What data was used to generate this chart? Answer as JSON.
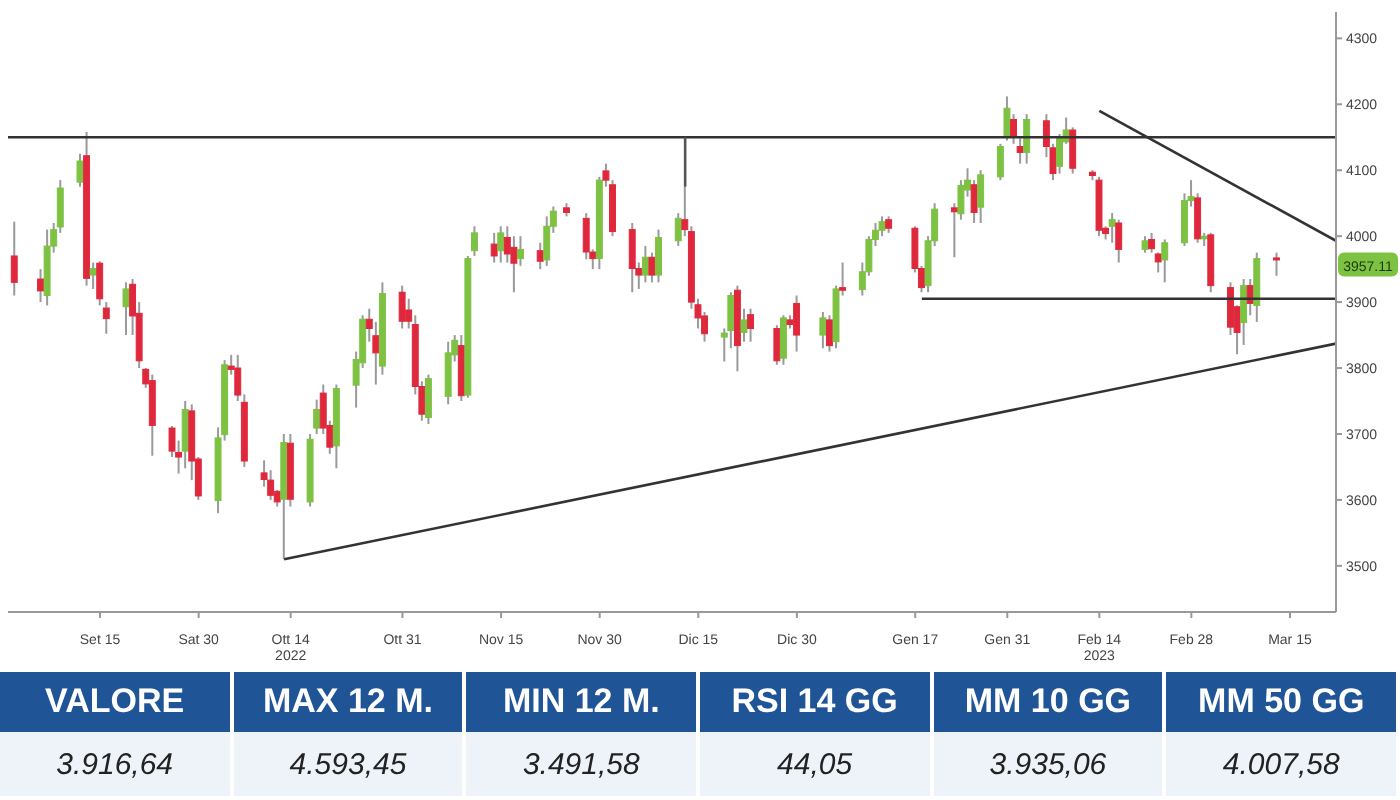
{
  "chart_data": [
    {
      "type": "candlestick",
      "x": [
        "2022-09-02",
        "2022-09-06",
        "2022-09-07",
        "2022-09-08",
        "2022-09-09",
        "2022-09-12",
        "2022-09-13",
        "2022-09-14",
        "2022-09-15",
        "2022-09-16",
        "2022-09-19",
        "2022-09-20",
        "2022-09-21",
        "2022-09-22",
        "2022-09-23",
        "2022-09-26",
        "2022-09-27",
        "2022-09-28",
        "2022-09-29",
        "2022-09-30",
        "2022-10-03",
        "2022-10-04",
        "2022-10-05",
        "2022-10-06",
        "2022-10-07",
        "2022-10-10",
        "2022-10-11",
        "2022-10-12",
        "2022-10-13",
        "2022-10-14",
        "2022-10-17",
        "2022-10-18",
        "2022-10-19",
        "2022-10-20",
        "2022-10-21",
        "2022-10-24",
        "2022-10-25",
        "2022-10-26",
        "2022-10-27",
        "2022-10-28",
        "2022-10-31",
        "2022-11-01",
        "2022-11-02",
        "2022-11-03",
        "2022-11-04",
        "2022-11-07",
        "2022-11-08",
        "2022-11-09",
        "2022-11-10",
        "2022-11-11",
        "2022-11-14",
        "2022-11-15",
        "2022-11-16",
        "2022-11-17",
        "2022-11-18",
        "2022-11-21",
        "2022-11-22",
        "2022-11-23",
        "2022-11-25",
        "2022-11-28",
        "2022-11-29",
        "2022-11-30",
        "2022-12-01",
        "2022-12-02",
        "2022-12-05",
        "2022-12-06",
        "2022-12-07",
        "2022-12-08",
        "2022-12-09",
        "2022-12-12",
        "2022-12-13",
        "2022-12-14",
        "2022-12-15",
        "2022-12-16",
        "2022-12-19",
        "2022-12-20",
        "2022-12-21",
        "2022-12-22",
        "2022-12-23",
        "2022-12-27",
        "2022-12-28",
        "2022-12-29",
        "2022-12-30",
        "2023-01-03",
        "2023-01-04",
        "2023-01-05",
        "2023-01-06",
        "2023-01-09",
        "2023-01-10",
        "2023-01-11",
        "2023-01-12",
        "2023-01-13",
        "2023-01-17",
        "2023-01-18",
        "2023-01-19",
        "2023-01-20",
        "2023-01-23",
        "2023-01-24",
        "2023-01-25",
        "2023-01-26",
        "2023-01-27",
        "2023-01-30",
        "2023-01-31",
        "2023-02-01",
        "2023-02-02",
        "2023-02-03",
        "2023-02-06",
        "2023-02-07",
        "2023-02-08",
        "2023-02-09",
        "2023-02-10",
        "2023-02-13",
        "2023-02-14",
        "2023-02-15",
        "2023-02-16",
        "2023-02-17",
        "2023-02-21",
        "2023-02-22",
        "2023-02-23",
        "2023-02-24",
        "2023-02-27",
        "2023-02-28",
        "2023-03-01",
        "2023-03-02",
        "2023-03-03",
        "2023-03-06",
        "2023-03-07",
        "2023-03-08",
        "2023-03-09",
        "2023-03-10",
        "2023-03-13"
      ],
      "ohlc": [
        [
          3970,
          4022,
          3910,
          3930
        ],
        [
          3935,
          3950,
          3900,
          3917
        ],
        [
          3910,
          4010,
          3895,
          3985
        ],
        [
          3985,
          4020,
          3975,
          4010
        ],
        [
          4014,
          4085,
          4005,
          4073
        ],
        [
          4082,
          4125,
          4075,
          4114
        ],
        [
          4122,
          4158,
          3925,
          3936
        ],
        [
          3941,
          3960,
          3920,
          3951
        ],
        [
          3959,
          3962,
          3895,
          3905
        ],
        [
          3891,
          3900,
          3852,
          3875
        ],
        [
          3893,
          3930,
          3850,
          3920
        ],
        [
          3927,
          3935,
          3850,
          3879
        ],
        [
          3883,
          3900,
          3800,
          3811
        ],
        [
          3798,
          3800,
          3770,
          3776
        ],
        [
          3781,
          3790,
          3667,
          3713
        ],
        [
          3709,
          3712,
          3665,
          3674
        ],
        [
          3672,
          3690,
          3640,
          3665
        ],
        [
          3674,
          3750,
          3648,
          3737
        ],
        [
          3735,
          3745,
          3630,
          3659
        ],
        [
          3662,
          3665,
          3600,
          3606
        ],
        [
          3599,
          3710,
          3580,
          3694
        ],
        [
          3699,
          3812,
          3690,
          3805
        ],
        [
          3803,
          3820,
          3790,
          3798
        ],
        [
          3800,
          3820,
          3750,
          3759
        ],
        [
          3748,
          3760,
          3650,
          3659
        ],
        [
          3641,
          3660,
          3620,
          3631
        ],
        [
          3630,
          3645,
          3600,
          3607
        ],
        [
          3613,
          3615,
          3590,
          3597
        ],
        [
          3601,
          3700,
          3510,
          3687
        ],
        [
          3686,
          3700,
          3590,
          3601
        ],
        [
          3597,
          3700,
          3590,
          3692
        ],
        [
          3709,
          3752,
          3700,
          3737
        ],
        [
          3762,
          3775,
          3700,
          3709
        ],
        [
          3713,
          3720,
          3670,
          3680
        ],
        [
          3682,
          3775,
          3648,
          3769
        ],
        [
          3774,
          3825,
          3740,
          3813
        ],
        [
          3808,
          3880,
          3800,
          3874
        ],
        [
          3874,
          3890,
          3840,
          3860
        ],
        [
          3849,
          3870,
          3775,
          3823
        ],
        [
          3803,
          3930,
          3790,
          3913
        ],
        [
          3915,
          3925,
          3860,
          3871
        ],
        [
          3888,
          3905,
          3860,
          3871
        ],
        [
          3866,
          3880,
          3760,
          3772
        ],
        [
          3772,
          3780,
          3720,
          3730
        ],
        [
          3725,
          3790,
          3715,
          3784
        ],
        [
          3757,
          3840,
          3745,
          3823
        ],
        [
          3820,
          3850,
          3810,
          3842
        ],
        [
          3834,
          3850,
          3750,
          3758
        ],
        [
          3759,
          3970,
          3755,
          3966
        ],
        [
          3978,
          4015,
          3970,
          4005
        ],
        [
          3988,
          4005,
          3960,
          3970
        ],
        [
          3978,
          4015,
          3960,
          4005
        ],
        [
          3998,
          4015,
          3960,
          3973
        ],
        [
          3983,
          4000,
          3915,
          3959
        ],
        [
          3966,
          4000,
          3955,
          3980
        ],
        [
          3978,
          3990,
          3950,
          3962
        ],
        [
          3964,
          4030,
          3955,
          4015
        ],
        [
          4015,
          4045,
          4005,
          4038
        ],
        [
          4043,
          4050,
          4030,
          4036
        ],
        [
          4027,
          4035,
          3965,
          3976
        ],
        [
          3976,
          3980,
          3950,
          3966
        ],
        [
          3966,
          4090,
          3950,
          4085
        ],
        [
          4099,
          4110,
          4075,
          4085
        ],
        [
          4078,
          4085,
          4000,
          4007
        ],
        [
          4010,
          4020,
          3915,
          3951
        ],
        [
          3951,
          3960,
          3920,
          3941
        ],
        [
          3941,
          3985,
          3930,
          3968
        ],
        [
          3968,
          3975,
          3930,
          3941
        ],
        [
          3941,
          4010,
          3930,
          3998
        ],
        [
          3993,
          4035,
          3985,
          4027
        ],
        [
          4025,
          4075,
          4000,
          4010
        ],
        [
          4007,
          4015,
          3890,
          3900
        ],
        [
          3896,
          3905,
          3860,
          3876
        ],
        [
          3879,
          3885,
          3840,
          3852
        ],
        [
          3847,
          3860,
          3810,
          3853
        ],
        [
          3857,
          3915,
          3830,
          3910
        ],
        [
          3918,
          3925,
          3795,
          3834
        ],
        [
          3854,
          3890,
          3840,
          3873
        ],
        [
          3881,
          3890,
          3840,
          3860
        ],
        [
          3860,
          3865,
          3805,
          3811
        ],
        [
          3815,
          3880,
          3805,
          3876
        ],
        [
          3873,
          3880,
          3860,
          3866
        ],
        [
          3898,
          3910,
          3825,
          3850
        ],
        [
          3850,
          3885,
          3830,
          3876
        ],
        [
          3873,
          3880,
          3825,
          3834
        ],
        [
          3840,
          3925,
          3830,
          3920
        ],
        [
          3922,
          3960,
          3910,
          3918
        ],
        [
          3919,
          3960,
          3910,
          3946
        ],
        [
          3946,
          4000,
          3940,
          3995
        ],
        [
          3995,
          4020,
          3985,
          4009
        ],
        [
          4009,
          4030,
          4000,
          4022
        ],
        [
          4025,
          4030,
          4005,
          4012
        ],
        [
          4012,
          4015,
          3945,
          3951
        ],
        [
          3951,
          3955,
          3915,
          3922
        ],
        [
          3925,
          4000,
          3915,
          3993
        ],
        [
          3993,
          4050,
          3985,
          4041
        ],
        [
          4043,
          4050,
          3968,
          4037
        ],
        [
          4034,
          4085,
          4025,
          4077
        ],
        [
          4070,
          4103,
          4060,
          4085
        ],
        [
          4078,
          4085,
          4020,
          4036
        ],
        [
          4044,
          4100,
          4020,
          4093
        ],
        [
          4090,
          4140,
          4085,
          4136
        ],
        [
          4151,
          4212,
          4145,
          4194
        ],
        [
          4177,
          4185,
          4140,
          4151
        ],
        [
          4136,
          4150,
          4110,
          4127
        ],
        [
          4127,
          4185,
          4110,
          4177
        ],
        [
          4175,
          4185,
          4120,
          4136
        ],
        [
          4134,
          4140,
          4085,
          4095
        ],
        [
          4106,
          4155,
          4095,
          4148
        ],
        [
          4143,
          4180,
          4140,
          4161
        ],
        [
          4161,
          4165,
          4095,
          4103
        ],
        [
          4097,
          4100,
          4085,
          4092
        ],
        [
          4085,
          4090,
          4000,
          4009
        ],
        [
          4012,
          4015,
          3995,
          4004
        ],
        [
          4015,
          4035,
          3990,
          4025
        ],
        [
          4020,
          4025,
          3960,
          3980
        ],
        [
          3980,
          4000,
          3975,
          3993
        ],
        [
          3995,
          4005,
          3975,
          3981
        ],
        [
          3973,
          3975,
          3945,
          3961
        ],
        [
          3964,
          3995,
          3930,
          3990
        ],
        [
          3990,
          4065,
          3985,
          4054
        ],
        [
          4054,
          4085,
          4045,
          4060
        ],
        [
          4058,
          4065,
          3990,
          3996
        ],
        [
          3996,
          4005,
          3985,
          4000
        ],
        [
          4002,
          4005,
          3915,
          3925
        ],
        [
          3922,
          3930,
          3850,
          3862
        ],
        [
          3893,
          3895,
          3821,
          3854
        ],
        [
          3869,
          3935,
          3835,
          3925
        ],
        [
          3925,
          3935,
          3880,
          3898
        ],
        [
          3895,
          3975,
          3870,
          3966
        ],
        [
          3967,
          3975,
          3940,
          3964
        ]
      ],
      "colors": [
        "#e0283c",
        "#e0283c",
        "#7dc242",
        "#7dc242",
        "#7dc242",
        "#7dc242",
        "#e0283c",
        "#7dc242",
        "#e0283c",
        "#e0283c",
        "#7dc242",
        "#e0283c",
        "#e0283c",
        "#e0283c",
        "#e0283c",
        "#e0283c",
        "#e0283c",
        "#7dc242",
        "#e0283c",
        "#e0283c",
        "#7dc242",
        "#7dc242",
        "#e0283c",
        "#e0283c",
        "#e0283c",
        "#e0283c",
        "#e0283c",
        "#e0283c",
        "#7dc242",
        "#e0283c",
        "#7dc242",
        "#7dc242",
        "#e0283c",
        "#e0283c",
        "#7dc242",
        "#7dc242",
        "#7dc242",
        "#e0283c",
        "#e0283c",
        "#7dc242",
        "#e0283c",
        "#e0283c",
        "#e0283c",
        "#e0283c",
        "#7dc242",
        "#7dc242",
        "#7dc242",
        "#e0283c",
        "#7dc242",
        "#7dc242",
        "#e0283c",
        "#7dc242",
        "#e0283c",
        "#e0283c",
        "#7dc242",
        "#e0283c",
        "#7dc242",
        "#7dc242",
        "#e0283c",
        "#e0283c",
        "#e0283c",
        "#7dc242",
        "#e0283c",
        "#e0283c",
        "#e0283c",
        "#e0283c",
        "#7dc242",
        "#e0283c",
        "#7dc242",
        "#7dc242",
        "#e0283c",
        "#e0283c",
        "#e0283c",
        "#e0283c",
        "#7dc242",
        "#7dc242",
        "#e0283c",
        "#7dc242",
        "#e0283c",
        "#e0283c",
        "#7dc242",
        "#e0283c",
        "#e0283c",
        "#7dc242",
        "#e0283c",
        "#7dc242",
        "#e0283c",
        "#7dc242",
        "#7dc242",
        "#7dc242",
        "#7dc242",
        "#e0283c",
        "#e0283c",
        "#e0283c",
        "#7dc242",
        "#7dc242",
        "#e0283c",
        "#7dc242",
        "#7dc242",
        "#e0283c",
        "#7dc242",
        "#7dc242",
        "#7dc242",
        "#e0283c",
        "#e0283c",
        "#7dc242",
        "#e0283c",
        "#e0283c",
        "#7dc242",
        "#7dc242",
        "#e0283c",
        "#e0283c",
        "#e0283c",
        "#e0283c",
        "#7dc242",
        "#e0283c",
        "#7dc242",
        "#e0283c",
        "#e0283c",
        "#7dc242",
        "#7dc242",
        "#7dc242",
        "#e0283c",
        "#7dc242",
        "#e0283c",
        "#e0283c",
        "#e0283c",
        "#7dc242",
        "#e0283c",
        "#7dc242",
        "#e0283c"
      ],
      "series": [
        {
          "type": "line",
          "color": "#333333",
          "x": [
            "2022-10-13",
            "2023-03-22"
          ],
          "values": [
            3510,
            3837
          ]
        },
        {
          "type": "line",
          "color": "#333333",
          "x": [
            "2023-02-14",
            "2023-03-22"
          ],
          "values": [
            4190,
            3993
          ]
        },
        {
          "type": "line",
          "color": "#333333",
          "x": [
            "2023-01-18",
            "2023-03-22"
          ],
          "values": [
            3905,
            3905
          ]
        },
        {
          "type": "line",
          "color": "#555555",
          "x": [
            "2022-12-13",
            "2022-12-13"
          ],
          "values": [
            4150,
            4075
          ]
        }
      ],
      "ref_lines": [
        {
          "axis": "y",
          "value": 4150,
          "color": "#333333"
        }
      ],
      "annotations": [
        {
          "text": "3957.11",
          "y": 3957
        }
      ],
      "xlim": [
        "2022-09-01",
        "2023-03-22"
      ],
      "xticks": [
        {
          "value": "2022-09-15",
          "label": "Set 15"
        },
        {
          "value": "2022-09-30",
          "label": "Sat 30"
        },
        {
          "value": "2022-10-14",
          "label": "Ott 14\n2022"
        },
        {
          "value": "2022-10-31",
          "label": "Ott 31"
        },
        {
          "value": "2022-11-15",
          "label": "Nov 15"
        },
        {
          "value": "2022-11-30",
          "label": "Nov 30"
        },
        {
          "value": "2022-12-15",
          "label": "Dic 15"
        },
        {
          "value": "2022-12-30",
          "label": "Dic 30"
        },
        {
          "value": "2023-01-17",
          "label": "Gen 17"
        },
        {
          "value": "2023-01-31",
          "label": "Gen 31"
        },
        {
          "value": "2023-02-14",
          "label": "Feb 14\n2023"
        },
        {
          "value": "2023-02-28",
          "label": "Feb 28"
        },
        {
          "value": "2023-03-15",
          "label": "Mar 15"
        }
      ],
      "ylim": [
        3430,
        4340
      ],
      "yticks": [
        3500,
        3600,
        3700,
        3800,
        3900,
        4000,
        4100,
        4200,
        4300
      ]
    },
    {
      "type": "other",
      "categories": [
        "VALORE",
        "MAX 12 M.",
        "MIN 12 M.",
        "RSI 14 GG",
        "MM 10 GG",
        "MM 50 GG"
      ],
      "annotations": [
        "3.916,64",
        "4.593,45",
        "3.491,58",
        "44,05",
        "3.935,06",
        "4.007,58"
      ]
    }
  ]
}
